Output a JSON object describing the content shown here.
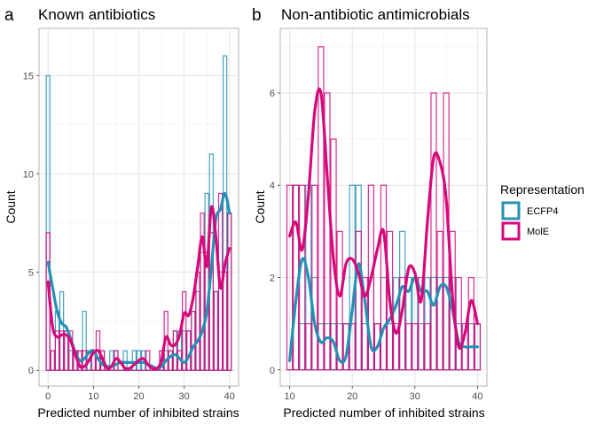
{
  "chart_data": [
    {
      "type": "bar",
      "tag": "a",
      "title": "Known antibiotics",
      "xlabel": "Predicted number of inhibited strains",
      "ylabel": "Count",
      "xlim": [
        -2,
        42
      ],
      "ylim": [
        -0.8,
        17.4
      ],
      "xticks": [
        0,
        10,
        20,
        30,
        40
      ],
      "yticks": [
        0,
        5,
        10,
        15
      ],
      "x": [
        0,
        1,
        2,
        3,
        4,
        5,
        6,
        7,
        8,
        9,
        10,
        11,
        12,
        13,
        14,
        15,
        16,
        17,
        18,
        19,
        20,
        21,
        22,
        23,
        24,
        25,
        26,
        27,
        28,
        29,
        30,
        31,
        32,
        33,
        34,
        35,
        36,
        37,
        38,
        39,
        40
      ],
      "series": [
        {
          "name": "ECFP4",
          "color": "#2491b5",
          "values": [
            15,
            1,
            3,
            4,
            2,
            1,
            1,
            1,
            3,
            1,
            1,
            1,
            1,
            0,
            1,
            1,
            0,
            1,
            0,
            1,
            1,
            1,
            0,
            0,
            0,
            1,
            1,
            1,
            2,
            2,
            2,
            2,
            3,
            4,
            6,
            9,
            11,
            4,
            5,
            16,
            8
          ],
          "density_x": [
            0,
            1,
            2,
            3,
            4,
            5,
            6,
            7,
            8,
            9,
            10,
            11,
            12,
            13,
            14,
            15,
            16,
            17,
            18,
            19,
            20,
            21,
            22,
            23,
            24,
            25,
            26,
            27,
            28,
            29,
            30,
            31,
            32,
            33,
            34,
            35,
            36,
            37,
            38,
            39,
            40
          ],
          "density_y": [
            5.5,
            4.2,
            3.0,
            2.4,
            2.2,
            1.6,
            0.9,
            0.5,
            0.6,
            0.9,
            1.0,
            0.6,
            0.3,
            0.2,
            0.2,
            0.3,
            0.4,
            0.4,
            0.4,
            0.4,
            0.4,
            0.4,
            0.3,
            0.2,
            0.1,
            0.2,
            0.5,
            0.7,
            0.8,
            0.6,
            0.4,
            0.7,
            1.2,
            1.5,
            2.0,
            3.0,
            5.2,
            7.7,
            8.2,
            9.0,
            8.0
          ]
        },
        {
          "name": "MolE",
          "color": "#d6087a",
          "values": [
            7,
            1,
            2,
            2,
            2,
            2,
            1,
            1,
            1,
            0,
            1,
            2,
            1,
            0,
            0,
            1,
            0,
            0,
            0,
            0,
            0,
            0,
            1,
            0,
            0,
            1,
            3,
            1,
            2,
            1,
            4,
            2,
            3,
            5,
            8,
            6,
            7,
            4,
            9,
            5,
            8
          ],
          "density_x": [
            0,
            1,
            2,
            3,
            4,
            5,
            6,
            7,
            8,
            9,
            10,
            11,
            12,
            13,
            14,
            15,
            16,
            17,
            18,
            19,
            20,
            21,
            22,
            23,
            24,
            25,
            26,
            27,
            28,
            29,
            30,
            31,
            32,
            33,
            34,
            35,
            36,
            37,
            38,
            39,
            40
          ],
          "density_y": [
            4.5,
            2.2,
            1.7,
            1.8,
            1.8,
            1.5,
            0.8,
            0.2,
            0.2,
            0.5,
            0.9,
            1.0,
            0.6,
            0.1,
            0.2,
            0.6,
            0.4,
            0.1,
            0.1,
            0.3,
            0.5,
            0.6,
            0.3,
            0.1,
            0.1,
            0.5,
            1.7,
            1.3,
            1.3,
            1.8,
            2.9,
            2.8,
            3.7,
            5.3,
            6.8,
            5.3,
            8.3,
            6.8,
            4.2,
            5.4,
            6.2
          ]
        }
      ]
    },
    {
      "type": "bar",
      "tag": "b",
      "title": "Non-antibiotic antimicrobials",
      "xlabel": "Predicted number of inhibited strains",
      "ylabel": "Count",
      "xlim": [
        8.5,
        41.5
      ],
      "ylim": [
        -0.35,
        7.4
      ],
      "xticks": [
        10,
        20,
        30,
        40
      ],
      "yticks": [
        0,
        2,
        4,
        6
      ],
      "x": [
        10,
        11,
        12,
        13,
        14,
        15,
        16,
        17,
        18,
        19,
        20,
        21,
        22,
        23,
        24,
        25,
        26,
        27,
        28,
        29,
        30,
        31,
        32,
        33,
        34,
        35,
        36,
        37,
        38,
        39,
        40
      ],
      "series": [
        {
          "name": "ECFP4",
          "color": "#2491b5",
          "values": [
            0,
            4,
            1,
            4,
            2,
            1,
            1,
            1,
            1,
            1,
            4,
            4,
            1,
            2,
            1,
            2,
            1,
            2,
            3,
            2,
            2,
            1,
            2,
            2,
            2,
            2,
            2,
            1,
            0,
            1,
            1
          ],
          "density_x": [
            10,
            11,
            12,
            13,
            14,
            15,
            16,
            17,
            18,
            19,
            20,
            21,
            22,
            23,
            24,
            25,
            26,
            27,
            28,
            29,
            30,
            31,
            32,
            33,
            34,
            35,
            36,
            37,
            38,
            39,
            40
          ],
          "density_y": [
            0.2,
            1.5,
            2.4,
            2.0,
            1.0,
            0.6,
            0.7,
            0.6,
            0.2,
            0.3,
            1.3,
            2.3,
            1.5,
            0.5,
            0.5,
            0.9,
            1.1,
            1.4,
            1.8,
            1.7,
            2.0,
            1.7,
            1.7,
            1.4,
            1.8,
            1.8,
            1.3,
            0.6,
            0.5,
            0.5,
            0.5
          ]
        },
        {
          "name": "MolE",
          "color": "#d6087a",
          "values": [
            4,
            4,
            4,
            1,
            4,
            7,
            6,
            5,
            3,
            1,
            1,
            3,
            2,
            4,
            1,
            4,
            3,
            1,
            2,
            1,
            1,
            2,
            1,
            6,
            3,
            6,
            3,
            2,
            1,
            2,
            1
          ],
          "density_x": [
            10,
            11,
            12,
            13,
            14,
            15,
            16,
            17,
            18,
            19,
            20,
            21,
            22,
            23,
            24,
            25,
            26,
            27,
            28,
            29,
            30,
            31,
            32,
            33,
            34,
            35,
            36,
            37,
            38,
            39,
            40
          ],
          "density_y": [
            2.9,
            3.2,
            2.6,
            3.8,
            5.6,
            6.0,
            4.2,
            2.4,
            1.6,
            2.3,
            2.4,
            2.1,
            1.6,
            2.0,
            2.6,
            3.0,
            1.5,
            0.8,
            1.3,
            2.2,
            2.1,
            1.5,
            3.2,
            4.6,
            4.5,
            3.7,
            1.6,
            0.5,
            0.8,
            1.5,
            1.0
          ]
        }
      ]
    }
  ],
  "legend": {
    "title": "Representation",
    "placement": "right",
    "items": [
      {
        "label": "ECFP4",
        "color": "#2491b5"
      },
      {
        "label": "MolE",
        "color": "#d6087a"
      }
    ]
  }
}
